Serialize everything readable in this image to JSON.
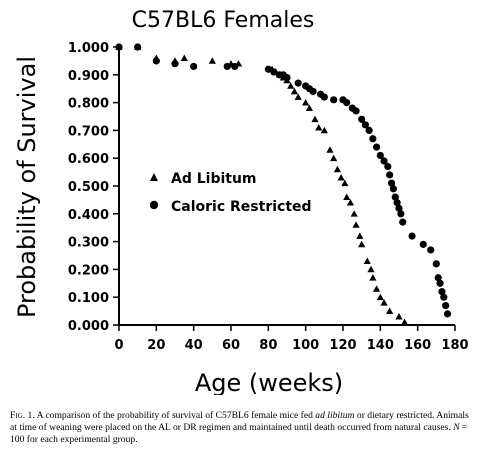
{
  "chart_data": {
    "type": "scatter",
    "title": "C57BL6 Females",
    "xlabel": "Age (weeks)",
    "ylabel": "Probability of Survival",
    "xlim": [
      0,
      180
    ],
    "ylim": [
      0,
      1
    ],
    "xticks": [
      "0",
      "20",
      "40",
      "60",
      "80",
      "100",
      "120",
      "140",
      "160",
      "180"
    ],
    "yticks": [
      "0.000",
      "0.100",
      "0.200",
      "0.300",
      "0.400",
      "0.500",
      "0.600",
      "0.700",
      "0.800",
      "0.900",
      "1.000"
    ],
    "legend_position": "middle-left",
    "series": [
      {
        "name": "Ad Libitum",
        "marker": "triangle",
        "color": "#000000",
        "points": [
          [
            0,
            1.0
          ],
          [
            10,
            1.0
          ],
          [
            20,
            0.96
          ],
          [
            30,
            0.95
          ],
          [
            35,
            0.96
          ],
          [
            50,
            0.95
          ],
          [
            60,
            0.94
          ],
          [
            64,
            0.94
          ],
          [
            82,
            0.92
          ],
          [
            84,
            0.91
          ],
          [
            86,
            0.9
          ],
          [
            88,
            0.89
          ],
          [
            90,
            0.88
          ],
          [
            92,
            0.86
          ],
          [
            94,
            0.84
          ],
          [
            96,
            0.82
          ],
          [
            100,
            0.8
          ],
          [
            102,
            0.78
          ],
          [
            105,
            0.74
          ],
          [
            107,
            0.71
          ],
          [
            110,
            0.7
          ],
          [
            113,
            0.63
          ],
          [
            115,
            0.6
          ],
          [
            117,
            0.56
          ],
          [
            119,
            0.53
          ],
          [
            121,
            0.51
          ],
          [
            122,
            0.46
          ],
          [
            124,
            0.44
          ],
          [
            126,
            0.4
          ],
          [
            127,
            0.36
          ],
          [
            129,
            0.32
          ],
          [
            130,
            0.29
          ],
          [
            133,
            0.23
          ],
          [
            135,
            0.2
          ],
          [
            136,
            0.17
          ],
          [
            138,
            0.13
          ],
          [
            140,
            0.1
          ],
          [
            142,
            0.08
          ],
          [
            145,
            0.05
          ],
          [
            150,
            0.03
          ],
          [
            153,
            0.01
          ]
        ]
      },
      {
        "name": "Caloric Restricted",
        "marker": "circle",
        "color": "#000000",
        "points": [
          [
            0,
            1.0
          ],
          [
            10,
            1.0
          ],
          [
            20,
            0.95
          ],
          [
            30,
            0.94
          ],
          [
            40,
            0.93
          ],
          [
            58,
            0.93
          ],
          [
            62,
            0.93
          ],
          [
            80,
            0.92
          ],
          [
            83,
            0.91
          ],
          [
            86,
            0.9
          ],
          [
            88,
            0.9
          ],
          [
            90,
            0.89
          ],
          [
            96,
            0.87
          ],
          [
            100,
            0.86
          ],
          [
            102,
            0.85
          ],
          [
            104,
            0.84
          ],
          [
            108,
            0.83
          ],
          [
            110,
            0.82
          ],
          [
            115,
            0.81
          ],
          [
            120,
            0.81
          ],
          [
            122,
            0.8
          ],
          [
            125,
            0.78
          ],
          [
            127,
            0.77
          ],
          [
            130,
            0.74
          ],
          [
            132,
            0.72
          ],
          [
            134,
            0.7
          ],
          [
            136,
            0.67
          ],
          [
            138,
            0.64
          ],
          [
            140,
            0.61
          ],
          [
            142,
            0.59
          ],
          [
            144,
            0.57
          ],
          [
            145,
            0.54
          ],
          [
            146,
            0.51
          ],
          [
            147,
            0.49
          ],
          [
            148,
            0.46
          ],
          [
            149,
            0.44
          ],
          [
            150,
            0.42
          ],
          [
            151,
            0.4
          ],
          [
            152,
            0.37
          ],
          [
            157,
            0.32
          ],
          [
            163,
            0.29
          ],
          [
            167,
            0.27
          ],
          [
            170,
            0.22
          ],
          [
            171,
            0.17
          ],
          [
            172,
            0.15
          ],
          [
            173,
            0.12
          ],
          [
            174,
            0.1
          ],
          [
            175,
            0.07
          ],
          [
            176,
            0.04
          ]
        ]
      }
    ]
  },
  "caption": {
    "fig_label": "Fig. 1.",
    "text_before_al": "A comparison of the probability of survival of C57BL6 female mice fed",
    "al_term": "ad libitum",
    "text_after_al": "or dietary restricted. Animals at time of weaning were placed on the AL or DR regimen and maintained until death occurred from natural causes.",
    "n_var": "N",
    "n_text": "= 100 for each experimental group."
  }
}
